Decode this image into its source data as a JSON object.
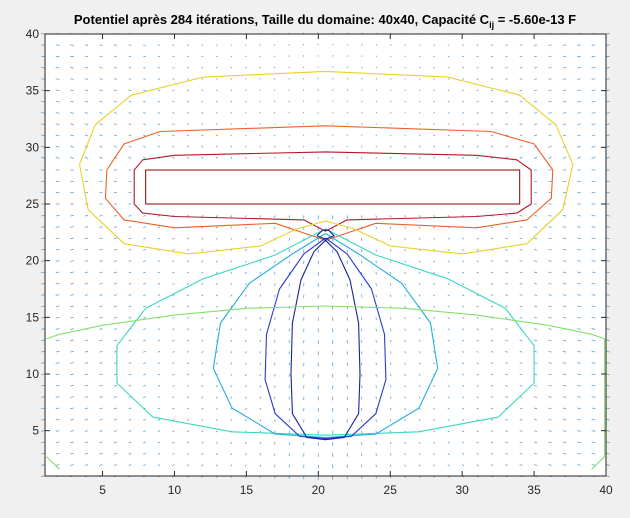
{
  "chart_data": {
    "type": "contour",
    "title_main": "Potentiel après 284 itérations, Taille du domaine: 40x40, Capacité C",
    "title_sub": "ij",
    "title_tail": " = -5.60e-13 F",
    "xlim": [
      1,
      40
    ],
    "ylim": [
      1,
      40
    ],
    "xticks": [
      "5",
      "10",
      "15",
      "20",
      "25",
      "30",
      "35",
      "40"
    ],
    "yticks": [
      "5",
      "10",
      "15",
      "20",
      "25",
      "30",
      "35",
      "40"
    ],
    "grid": false,
    "plate": {
      "x": [
        8,
        34
      ],
      "y": [
        25,
        28
      ]
    },
    "contours": [
      {
        "color": "#b2182b",
        "points": [
          [
            7.2,
            28
          ],
          [
            7.8,
            28.9
          ],
          [
            10,
            29.3
          ],
          [
            20.5,
            29.6
          ],
          [
            31,
            29.3
          ],
          [
            33.8,
            28.9
          ],
          [
            34.8,
            28
          ],
          [
            34.8,
            25
          ],
          [
            33.8,
            24.2
          ],
          [
            31,
            23.9
          ],
          [
            22,
            23.6
          ],
          [
            20.5,
            22.6
          ],
          [
            19,
            23.6
          ],
          [
            10,
            23.9
          ],
          [
            7.8,
            24.2
          ],
          [
            7.2,
            25
          ],
          [
            7.2,
            28
          ]
        ]
      },
      {
        "color": "#ee5f26",
        "points": [
          [
            5.3,
            28
          ],
          [
            6.5,
            30.3
          ],
          [
            9,
            31.4
          ],
          [
            20.5,
            31.9
          ],
          [
            32,
            31.4
          ],
          [
            35,
            30.3
          ],
          [
            36.3,
            28
          ],
          [
            36.2,
            25.5
          ],
          [
            34.5,
            23.6
          ],
          [
            31,
            22.9
          ],
          [
            24,
            23.3
          ],
          [
            21.2,
            22.1
          ],
          [
            20.5,
            21.8
          ],
          [
            19.8,
            22.1
          ],
          [
            17,
            23.3
          ],
          [
            10,
            22.9
          ],
          [
            6.5,
            23.6
          ],
          [
            5.2,
            25.5
          ],
          [
            5.3,
            28
          ]
        ]
      },
      {
        "color": "#e8d12a",
        "points": [
          [
            3.4,
            28.5
          ],
          [
            4.5,
            32
          ],
          [
            7,
            34.6
          ],
          [
            12,
            36.2
          ],
          [
            20.5,
            36.7
          ],
          [
            29,
            36.2
          ],
          [
            34,
            34.6
          ],
          [
            36.5,
            32
          ],
          [
            37.7,
            28.5
          ],
          [
            37,
            24.5
          ],
          [
            34.5,
            21.5
          ],
          [
            30,
            20.6
          ],
          [
            25,
            21.3
          ],
          [
            22.5,
            22.8
          ],
          [
            20.5,
            23.5
          ],
          [
            18.5,
            22.8
          ],
          [
            16,
            21.3
          ],
          [
            11,
            20.6
          ],
          [
            6.5,
            21.5
          ],
          [
            4,
            24.5
          ],
          [
            3.4,
            28.5
          ]
        ]
      },
      {
        "color": "#3cd7c2",
        "points": [
          [
            20.5,
            22.8
          ],
          [
            24,
            20.5
          ],
          [
            29,
            18.4
          ],
          [
            33,
            15.8
          ],
          [
            35,
            12.5
          ],
          [
            35,
            9.2
          ],
          [
            32.5,
            6.2
          ],
          [
            27,
            4.9
          ],
          [
            20.5,
            4.6
          ],
          [
            14,
            4.9
          ],
          [
            8.5,
            6.2
          ],
          [
            6,
            9.2
          ],
          [
            6,
            12.5
          ],
          [
            8,
            15.8
          ],
          [
            12,
            18.4
          ],
          [
            17,
            20.5
          ],
          [
            20.5,
            22.8
          ]
        ]
      },
      {
        "color": "#24aee0",
        "points": [
          [
            20.5,
            22.4
          ],
          [
            22.8,
            20.6
          ],
          [
            25.8,
            18
          ],
          [
            27.8,
            14.5
          ],
          [
            28.3,
            10.5
          ],
          [
            27,
            7
          ],
          [
            24,
            4.7
          ],
          [
            20.5,
            4.4
          ],
          [
            17,
            4.7
          ],
          [
            14,
            7
          ],
          [
            12.7,
            10.5
          ],
          [
            13.2,
            14.5
          ],
          [
            15.2,
            18
          ],
          [
            18.2,
            20.6
          ],
          [
            20.5,
            22.4
          ]
        ]
      },
      {
        "color": "#2a3bd0",
        "points": [
          [
            20.5,
            22
          ],
          [
            22,
            20.6
          ],
          [
            23.7,
            17.5
          ],
          [
            24.6,
            13.5
          ],
          [
            24.7,
            9.5
          ],
          [
            24,
            6.5
          ],
          [
            22.3,
            4.5
          ],
          [
            20.5,
            4.3
          ],
          [
            18.7,
            4.5
          ],
          [
            17,
            6.5
          ],
          [
            16.3,
            9.5
          ],
          [
            16.4,
            13.5
          ],
          [
            17.3,
            17.5
          ],
          [
            19,
            20.6
          ],
          [
            20.5,
            22
          ]
        ]
      },
      {
        "color": "#1b2496",
        "points": [
          [
            20.5,
            21.8
          ],
          [
            21.3,
            20.8
          ],
          [
            22.2,
            18.3
          ],
          [
            22.8,
            14.5
          ],
          [
            22.9,
            10
          ],
          [
            22.8,
            6.5
          ],
          [
            21.8,
            4.4
          ],
          [
            20.5,
            4.2
          ],
          [
            19.2,
            4.4
          ],
          [
            18.2,
            6.5
          ],
          [
            18.1,
            10
          ],
          [
            18.2,
            14.5
          ],
          [
            18.8,
            18.3
          ],
          [
            19.7,
            20.8
          ],
          [
            20.5,
            21.8
          ]
        ]
      },
      {
        "color": "#1b2496",
        "points": [
          [
            19.9,
            22.2
          ],
          [
            20.3,
            22.7
          ],
          [
            20.7,
            22.7
          ],
          [
            21.1,
            22.2
          ],
          [
            20.5,
            21.9
          ],
          [
            19.9,
            22.2
          ]
        ]
      },
      {
        "color": "#86e06c",
        "points": [
          [
            1.1,
            13.1
          ],
          [
            2,
            13.5
          ],
          [
            5,
            14.3
          ],
          [
            10,
            15.2
          ],
          [
            15,
            15.8
          ],
          [
            20.5,
            16
          ],
          [
            26,
            15.8
          ],
          [
            31,
            15.2
          ],
          [
            36,
            14.3
          ],
          [
            39,
            13.5
          ],
          [
            39.9,
            13.1
          ],
          [
            39.9,
            2.7
          ],
          [
            39,
            1.6
          ]
        ]
      },
      {
        "color": "#86e06c",
        "points": [
          [
            1.1,
            2.7
          ],
          [
            2,
            1.6
          ]
        ]
      }
    ]
  }
}
